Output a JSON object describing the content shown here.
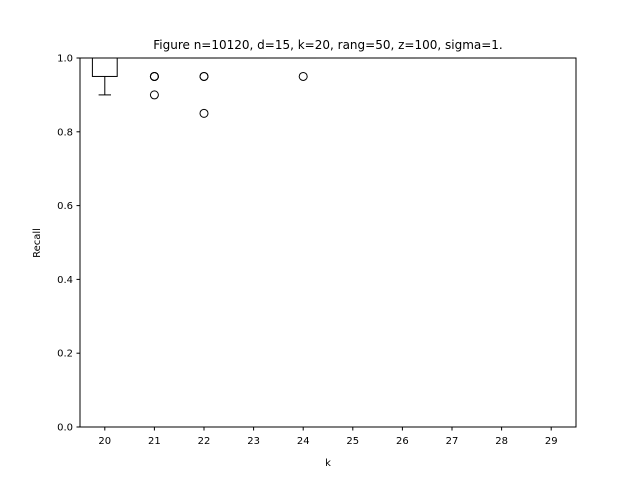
{
  "chart_data": {
    "type": "box",
    "title": "Figure   n=10120, d=15, k=20, rang=50, z=100, sigma=1.",
    "xlabel": "k",
    "ylabel": "Recall",
    "ylim": [
      0.0,
      1.0
    ],
    "yticks": [
      "0.0",
      "0.2",
      "0.4",
      "0.6",
      "0.8",
      "1.0"
    ],
    "categories": [
      "20",
      "21",
      "22",
      "23",
      "24",
      "25",
      "26",
      "27",
      "28",
      "29"
    ],
    "median_color": "#ff7f0e",
    "boxes": [
      {
        "category": "20",
        "whisker_low": 0.9,
        "q1": 0.95,
        "median": 1.0,
        "q3": 1.0,
        "whisker_high": 1.0,
        "outliers": []
      },
      {
        "category": "21",
        "whisker_low": 1.0,
        "q1": 1.0,
        "median": 1.0,
        "q3": 1.0,
        "whisker_high": 1.0,
        "outliers": [
          0.95,
          0.95,
          0.95,
          0.9
        ]
      },
      {
        "category": "22",
        "whisker_low": 1.0,
        "q1": 1.0,
        "median": 1.0,
        "q3": 1.0,
        "whisker_high": 1.0,
        "outliers": [
          0.95,
          0.95,
          0.85
        ]
      },
      {
        "category": "23",
        "whisker_low": 1.0,
        "q1": 1.0,
        "median": 1.0,
        "q3": 1.0,
        "whisker_high": 1.0,
        "outliers": []
      },
      {
        "category": "24",
        "whisker_low": 1.0,
        "q1": 1.0,
        "median": 1.0,
        "q3": 1.0,
        "whisker_high": 1.0,
        "outliers": [
          0.95
        ]
      },
      {
        "category": "25",
        "whisker_low": 1.0,
        "q1": 1.0,
        "median": 1.0,
        "q3": 1.0,
        "whisker_high": 1.0,
        "outliers": []
      },
      {
        "category": "26",
        "whisker_low": 1.0,
        "q1": 1.0,
        "median": 1.0,
        "q3": 1.0,
        "whisker_high": 1.0,
        "outliers": []
      },
      {
        "category": "27",
        "whisker_low": 1.0,
        "q1": 1.0,
        "median": 1.0,
        "q3": 1.0,
        "whisker_high": 1.0,
        "outliers": []
      },
      {
        "category": "28",
        "whisker_low": 1.0,
        "q1": 1.0,
        "median": 1.0,
        "q3": 1.0,
        "whisker_high": 1.0,
        "outliers": []
      },
      {
        "category": "29",
        "whisker_low": 1.0,
        "q1": 1.0,
        "median": 1.0,
        "q3": 1.0,
        "whisker_high": 1.0,
        "outliers": []
      }
    ]
  }
}
